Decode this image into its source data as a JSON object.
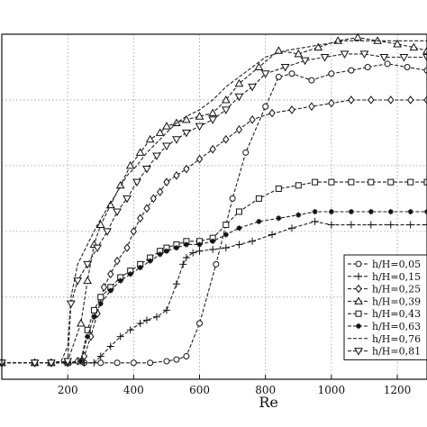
{
  "chart_data": {
    "type": "line",
    "xlabel": "Re",
    "ylabel": "",
    "title": "",
    "xlim": [
      0,
      1290
    ],
    "x_ticks": [
      200,
      400,
      600,
      800,
      1000,
      1200
    ],
    "x_tick_labels": [
      "200",
      "400",
      "600",
      "800",
      "1000",
      "1200"
    ],
    "ylim": [
      -0.05,
      1.0
    ],
    "grid": true,
    "legend_position": "right",
    "series": [
      {
        "name": "h/H=0,05",
        "marker": "circle",
        "color": "#222222",
        "x": [
          0,
          100,
          150,
          200,
          250,
          300,
          350,
          400,
          450,
          500,
          530,
          560,
          600,
          650,
          700,
          740,
          800,
          840,
          880,
          940,
          1000,
          1060,
          1110,
          1170,
          1230,
          1290
        ],
        "y": [
          0.0,
          0.0,
          0.0,
          0.0,
          0.0,
          0.0,
          0.0,
          0.0,
          0.0,
          0.005,
          0.01,
          0.02,
          0.12,
          0.3,
          0.5,
          0.64,
          0.78,
          0.87,
          0.88,
          0.86,
          0.88,
          0.89,
          0.9,
          0.91,
          0.9,
          0.89
        ]
      },
      {
        "name": "h/H=0,15",
        "marker": "plus",
        "color": "#222222",
        "x": [
          0,
          100,
          150,
          200,
          250,
          280,
          300,
          330,
          360,
          390,
          420,
          440,
          470,
          500,
          530,
          550,
          560,
          580,
          600,
          640,
          680,
          720,
          760,
          820,
          880,
          950,
          1000,
          1060,
          1120,
          1180,
          1240,
          1290
        ],
        "y": [
          0.0,
          0.0,
          0.0,
          0.0,
          0.0,
          0.0,
          0.02,
          0.05,
          0.08,
          0.1,
          0.12,
          0.13,
          0.14,
          0.16,
          0.24,
          0.3,
          0.32,
          0.335,
          0.34,
          0.345,
          0.35,
          0.36,
          0.37,
          0.39,
          0.41,
          0.43,
          0.42,
          0.42,
          0.42,
          0.42,
          0.42,
          0.42
        ]
      },
      {
        "name": "h/H=0,25",
        "marker": "diamond",
        "color": "#222222",
        "x": [
          0,
          100,
          150,
          200,
          230,
          250,
          270,
          290,
          310,
          330,
          350,
          380,
          400,
          420,
          440,
          460,
          480,
          500,
          530,
          560,
          600,
          640,
          680,
          720,
          760,
          820,
          880,
          940,
          1000,
          1060,
          1120,
          1180,
          1240,
          1290
        ],
        "y": [
          0.0,
          0.0,
          0.0,
          0.0,
          0.005,
          0.02,
          0.08,
          0.15,
          0.23,
          0.27,
          0.31,
          0.35,
          0.4,
          0.44,
          0.47,
          0.5,
          0.52,
          0.55,
          0.57,
          0.59,
          0.62,
          0.65,
          0.68,
          0.71,
          0.74,
          0.76,
          0.77,
          0.78,
          0.79,
          0.8,
          0.8,
          0.8,
          0.8,
          0.8
        ]
      },
      {
        "name": "h/H=0,39",
        "marker": "triangle-up",
        "color": "#222222",
        "x": [
          0,
          100,
          150,
          200,
          240,
          260,
          280,
          300,
          330,
          360,
          390,
          420,
          450,
          480,
          500,
          530,
          560,
          600,
          640,
          680,
          720,
          780,
          840,
          900,
          960,
          1020,
          1080,
          1140,
          1200,
          1250,
          1290
        ],
        "y": [
          0.0,
          0.0,
          0.0,
          0.005,
          0.12,
          0.25,
          0.36,
          0.42,
          0.48,
          0.54,
          0.6,
          0.64,
          0.68,
          0.7,
          0.72,
          0.73,
          0.74,
          0.75,
          0.76,
          0.8,
          0.85,
          0.9,
          0.95,
          0.94,
          0.96,
          0.98,
          0.99,
          0.98,
          0.97,
          0.96,
          0.95
        ]
      },
      {
        "name": "h/H=0,43",
        "marker": "square",
        "color": "#222222",
        "x": [
          0,
          100,
          150,
          200,
          240,
          260,
          280,
          300,
          330,
          360,
          390,
          420,
          450,
          480,
          500,
          530,
          560,
          600,
          640,
          680,
          720,
          780,
          840,
          900,
          950,
          1000,
          1060,
          1120,
          1180,
          1240,
          1290
        ],
        "y": [
          0.0,
          0.0,
          0.0,
          0.0,
          0.005,
          0.1,
          0.16,
          0.2,
          0.23,
          0.26,
          0.28,
          0.3,
          0.32,
          0.34,
          0.35,
          0.36,
          0.37,
          0.37,
          0.38,
          0.42,
          0.46,
          0.5,
          0.53,
          0.54,
          0.55,
          0.55,
          0.55,
          0.55,
          0.55,
          0.55,
          0.55
        ]
      },
      {
        "name": "h/H=0,63",
        "marker": "star",
        "color": "#222222",
        "x": [
          0,
          100,
          150,
          200,
          240,
          260,
          280,
          300,
          330,
          360,
          390,
          420,
          450,
          480,
          500,
          530,
          560,
          600,
          640,
          680,
          720,
          780,
          840,
          900,
          950,
          1000,
          1060,
          1120,
          1180,
          1240,
          1290
        ],
        "y": [
          0.0,
          0.0,
          0.0,
          0.0,
          0.005,
          0.08,
          0.14,
          0.18,
          0.22,
          0.25,
          0.27,
          0.29,
          0.31,
          0.33,
          0.34,
          0.35,
          0.36,
          0.36,
          0.37,
          0.39,
          0.41,
          0.43,
          0.44,
          0.45,
          0.46,
          0.46,
          0.46,
          0.46,
          0.46,
          0.46,
          0.46
        ]
      },
      {
        "name": "h/H=0,76",
        "marker": "none",
        "color": "#222222",
        "x": [
          0,
          100,
          150,
          180,
          200,
          210,
          230,
          260,
          290,
          320,
          350,
          380,
          410,
          440,
          470,
          500,
          530,
          560,
          600,
          640,
          680,
          720,
          760,
          800,
          860,
          920,
          980,
          1040,
          1100,
          1160,
          1220,
          1290
        ],
        "y": [
          0.0,
          0.0,
          0.0,
          0.005,
          0.05,
          0.2,
          0.3,
          0.36,
          0.42,
          0.47,
          0.52,
          0.57,
          0.6,
          0.64,
          0.67,
          0.7,
          0.73,
          0.75,
          0.77,
          0.8,
          0.84,
          0.87,
          0.9,
          0.93,
          0.95,
          0.96,
          0.97,
          0.98,
          0.98,
          0.98,
          0.98,
          0.98
        ]
      },
      {
        "name": "h/H=0,81",
        "marker": "triangle-down",
        "color": "#222222",
        "x": [
          0,
          100,
          150,
          200,
          210,
          230,
          260,
          290,
          320,
          350,
          380,
          410,
          440,
          470,
          500,
          530,
          560,
          600,
          640,
          680,
          720,
          760,
          800,
          860,
          920,
          980,
          1040,
          1100,
          1160,
          1220,
          1290
        ],
        "y": [
          0.0,
          0.0,
          0.0,
          0.005,
          0.18,
          0.25,
          0.3,
          0.35,
          0.4,
          0.46,
          0.5,
          0.55,
          0.59,
          0.63,
          0.66,
          0.68,
          0.7,
          0.72,
          0.74,
          0.77,
          0.81,
          0.84,
          0.88,
          0.9,
          0.92,
          0.93,
          0.94,
          0.94,
          0.93,
          0.93,
          0.93
        ]
      }
    ]
  }
}
